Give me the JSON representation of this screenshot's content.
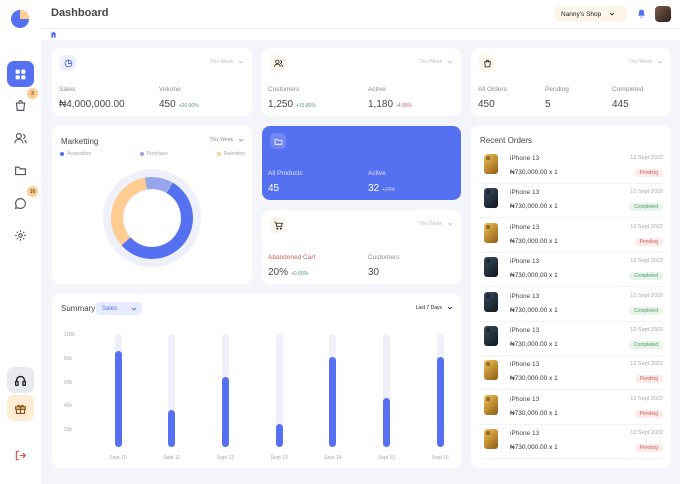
{
  "header": {
    "title": "Dashboard",
    "shop": "Nanny's Shop"
  },
  "sidebar": {
    "items": [
      {
        "icon": "grid-icon",
        "active": true
      },
      {
        "icon": "bag-icon",
        "badge": "3"
      },
      {
        "icon": "users-icon"
      },
      {
        "icon": "folder-icon"
      },
      {
        "icon": "chat-icon",
        "badge": "16"
      },
      {
        "icon": "gear-icon"
      }
    ],
    "support_icon": "headphones-icon",
    "gift_icon": "gift-icon",
    "logout_icon": "logout-icon"
  },
  "sales_card": {
    "period": "This Week",
    "sales_label": "Sales",
    "sales_value": "₦4,000,000.00",
    "volume_label": "Volume",
    "volume_value": "450",
    "volume_delta": "+20.00%"
  },
  "customers_card": {
    "period": "This Week",
    "customers_label": "Customers",
    "customers_value": "1,250",
    "customers_delta": "+15.80%",
    "active_label": "Active",
    "active_value": "1,180",
    "active_delta": "-4.90%"
  },
  "orders_card": {
    "period": "This Week",
    "all_label": "All Orders",
    "all_value": "450",
    "pending_label": "Pending",
    "pending_value": "5",
    "completed_label": "Completed",
    "completed_value": "445"
  },
  "marketing": {
    "title": "Marketting",
    "period": "This Week",
    "legend": [
      {
        "label": "Acquisition",
        "color": "#5570f1"
      },
      {
        "label": "Purchase",
        "color": "#97a5eb"
      },
      {
        "label": "Retention",
        "color": "#ffcc91"
      }
    ]
  },
  "products_card": {
    "all_label": "All Products",
    "all_value": "45",
    "active_label": "Active",
    "active_value": "32",
    "active_delta": "+24%"
  },
  "abandoned_card": {
    "period": "This Week",
    "cart_label": "Abandoned Cart",
    "cart_value": "20%",
    "cart_delta": "+0.00%",
    "customers_label": "Customers",
    "customers_value": "30"
  },
  "recent_orders": {
    "title": "Recent Orders",
    "items": [
      {
        "name": "iPhone 13",
        "price": "₦730,000.00 x 1",
        "date": "12 Sept 2022",
        "status": "Pending",
        "phone": "gold"
      },
      {
        "name": "iPhone 13",
        "price": "₦730,000.00 x 1",
        "date": "12 Sept 2022",
        "status": "Completed",
        "phone": "blue"
      },
      {
        "name": "iPhone 13",
        "price": "₦730,000.00 x 1",
        "date": "12 Sept 2022",
        "status": "Pending",
        "phone": "gold"
      },
      {
        "name": "iPhone 13",
        "price": "₦730,000.00 x 1",
        "date": "12 Sept 2022",
        "status": "Completed",
        "phone": "blue"
      },
      {
        "name": "iPhone 13",
        "price": "₦730,000.00 x 1",
        "date": "12 Sept 2022",
        "status": "Completed",
        "phone": "blue"
      },
      {
        "name": "iPhone 13",
        "price": "₦730,000.00 x 1",
        "date": "12 Sept 2022",
        "status": "Completed",
        "phone": "blue"
      },
      {
        "name": "iPhone 13",
        "price": "₦730,000.00 x 1",
        "date": "12 Sept 2022",
        "status": "Pending",
        "phone": "gold"
      },
      {
        "name": "iPhone 13",
        "price": "₦730,000.00 x 1",
        "date": "12 Sept 2022",
        "status": "Pending",
        "phone": "gold"
      },
      {
        "name": "iPhone 13",
        "price": "₦730,000.00 x 1",
        "date": "12 Sept 2022",
        "status": "Pending",
        "phone": "gold"
      }
    ]
  },
  "summary": {
    "title": "Summary",
    "select": "Sales",
    "range": "Last 7 Days"
  },
  "chart_data": {
    "type": "bar",
    "categories": [
      "Sept 10",
      "Sept 11",
      "Sept 12",
      "Sept 13",
      "Sept 14",
      "Sept 15",
      "Sept 16"
    ],
    "values": [
      85000,
      33000,
      62000,
      20000,
      80000,
      43000,
      80000
    ],
    "yticks": [
      "100k",
      "80k",
      "60k",
      "40k",
      "20k"
    ],
    "ylim": [
      0,
      100000
    ],
    "color": "#5570f1"
  }
}
